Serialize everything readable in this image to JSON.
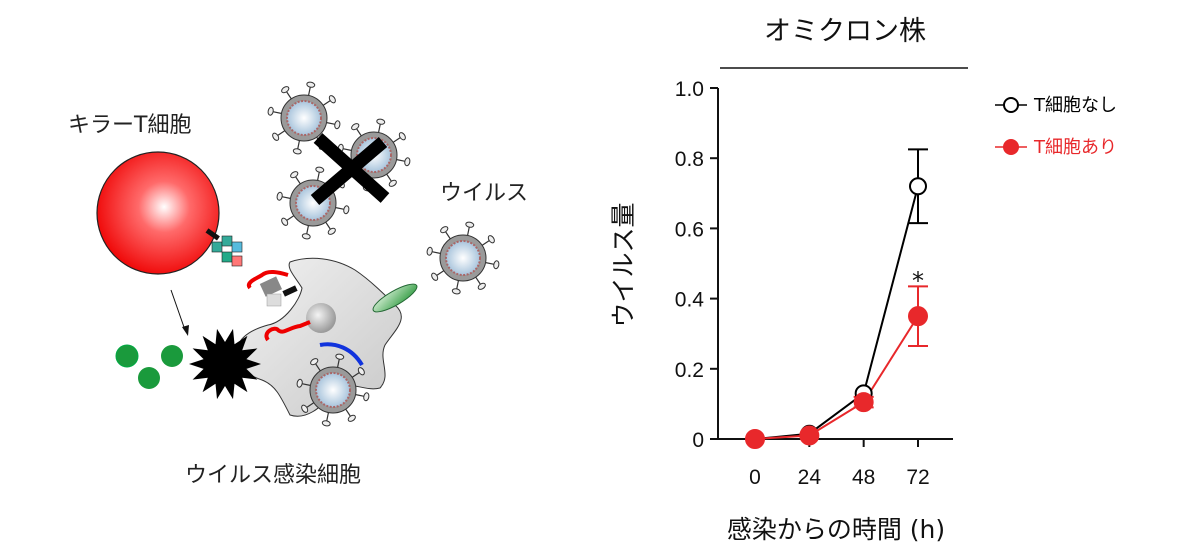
{
  "diagram": {
    "labels": {
      "killer_t_cell": "キラーT細胞",
      "virus": "ウイルス",
      "infected_cell": "ウイルス感染細胞"
    }
  },
  "chart_data": {
    "type": "line",
    "title": "オミクロン株",
    "xlabel": "感染からの時間 (h)",
    "ylabel": "ウイルス量",
    "x": [
      0,
      24,
      48,
      72
    ],
    "x_tick_labels": [
      "0",
      "24",
      "48",
      "72"
    ],
    "ylim": [
      0,
      1.0
    ],
    "y_tick_labels": [
      "0",
      "0.2",
      "0.4",
      "0.6",
      "0.8",
      "1.0"
    ],
    "y_ticks": [
      0,
      0.2,
      0.4,
      0.6,
      0.8,
      1.0
    ],
    "grid": false,
    "legend_position": "right",
    "series": [
      {
        "name": "T細胞なし",
        "color": "#000000",
        "marker": "open-circle",
        "values": [
          0,
          0.015,
          0.13,
          0.72
        ],
        "error": [
          0,
          0,
          0,
          0.105
        ]
      },
      {
        "name": "T細胞あり",
        "color": "#e8282b",
        "marker": "filled-circle",
        "values": [
          0,
          0.01,
          0.105,
          0.35
        ],
        "error": [
          0,
          0,
          0.015,
          0.085
        ]
      }
    ],
    "annotations": [
      {
        "x": 72,
        "text": "*"
      }
    ]
  }
}
